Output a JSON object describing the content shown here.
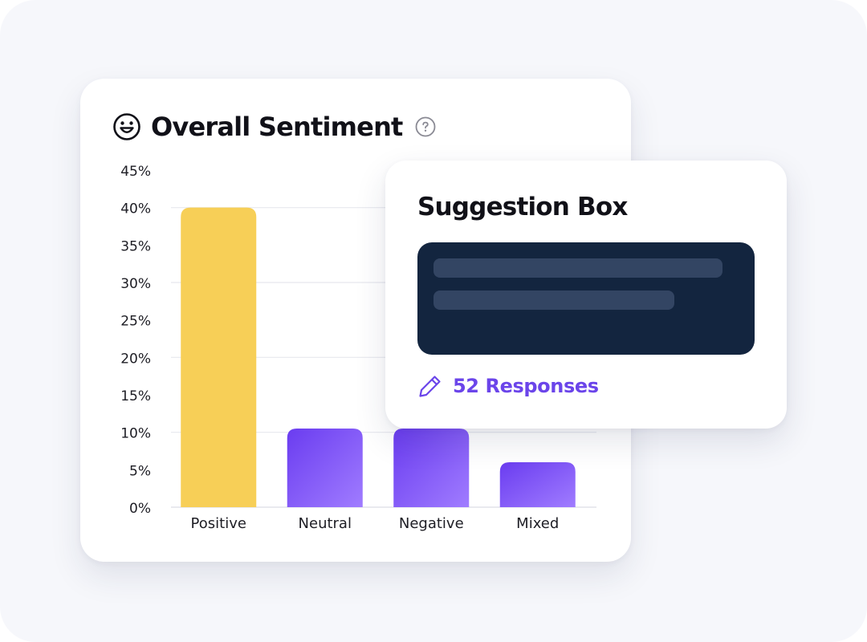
{
  "sentiment_card": {
    "title": "Overall Sentiment",
    "title_icon": "smiley-face-icon",
    "help_icon": "question-circle-icon"
  },
  "suggestion_card": {
    "title": "Suggestion Box",
    "textbox_icon": "redacted-text-placeholder",
    "responses_icon": "pencil-icon",
    "responses_label": "52 Responses"
  },
  "colors": {
    "positive_bar": "#f7cf57",
    "purple_bar_top": "#6a3cf0",
    "purple_bar_bottom": "#a07cff",
    "accent_text": "#6b45ea",
    "textbox_bg": "#13253f"
  },
  "chart_data": {
    "type": "bar",
    "categories": [
      "Positive",
      "Neutral",
      "Negative",
      "Mixed"
    ],
    "values": [
      40,
      10.5,
      10.5,
      6
    ],
    "ylim": [
      0,
      45
    ],
    "y_ticks": [
      "0%",
      "5%",
      "10%",
      "15%",
      "20%",
      "25%",
      "30%",
      "35%",
      "40%",
      "45%"
    ],
    "y_tick_values": [
      0,
      5,
      10,
      15,
      20,
      25,
      30,
      35,
      40,
      45
    ],
    "y_unit": "%",
    "grid": true,
    "legend": "none"
  }
}
